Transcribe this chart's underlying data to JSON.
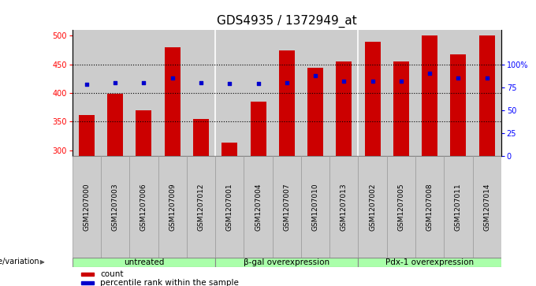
{
  "title": "GDS4935 / 1372949_at",
  "samples": [
    "GSM1207000",
    "GSM1207003",
    "GSM1207006",
    "GSM1207009",
    "GSM1207012",
    "GSM1207001",
    "GSM1207004",
    "GSM1207007",
    "GSM1207010",
    "GSM1207013",
    "GSM1207002",
    "GSM1207005",
    "GSM1207008",
    "GSM1207011",
    "GSM1207014"
  ],
  "counts": [
    362,
    398,
    369,
    480,
    355,
    313,
    385,
    474,
    444,
    455,
    490,
    455,
    500,
    467,
    500
  ],
  "percentile_ranks": [
    78,
    80,
    80,
    85,
    80,
    79,
    79,
    80,
    88,
    82,
    82,
    82,
    90,
    85,
    85
  ],
  "groups": [
    {
      "label": "untreated",
      "start": 0,
      "end": 5
    },
    {
      "label": "β-gal overexpression",
      "start": 5,
      "end": 10
    },
    {
      "label": "Pdx-1 overexpression",
      "start": 10,
      "end": 15
    }
  ],
  "bar_color": "#CC0000",
  "dot_color": "#0000CC",
  "ylim_left": [
    290,
    510
  ],
  "ylim_right": [
    0,
    137.5
  ],
  "yticks_left": [
    300,
    350,
    400,
    450,
    500
  ],
  "yticks_right": [
    0,
    25,
    50,
    75,
    100
  ],
  "grid_values": [
    350,
    400,
    450
  ],
  "bar_bg_color": "#cccccc",
  "group_fill_color": "#aaffaa",
  "group_edge_color": "#666666",
  "genotype_label": "genotype/variation",
  "legend_count": "count",
  "legend_percentile": "percentile rank within the sample",
  "title_fontsize": 11,
  "tick_fontsize": 7,
  "bar_width": 0.55,
  "n_samples": 15
}
